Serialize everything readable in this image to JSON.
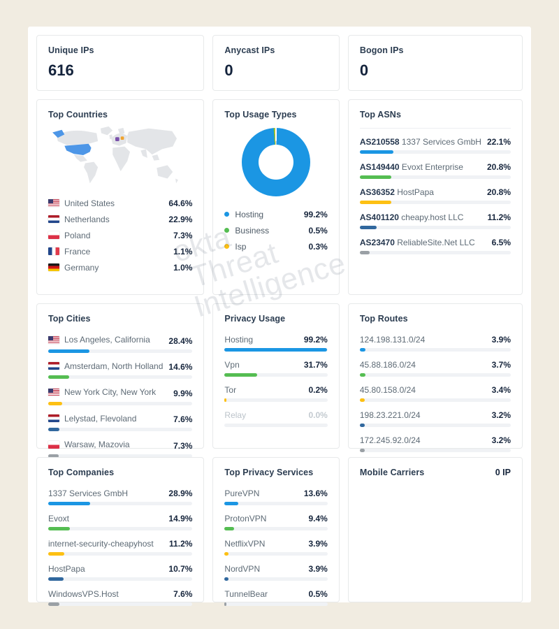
{
  "colors": {
    "blue": "#1b96e3",
    "green": "#55bd52",
    "yellow": "#fdc013",
    "navy": "#31689e",
    "gray": "#9aa0a5",
    "map_base": "#e3e5e8",
    "map_us": "#4d96e7",
    "map_marker_purple": "#7b52ab",
    "map_marker_orange": "#f0a32f",
    "track": "#f0f2f5"
  },
  "watermark": {
    "lines": [
      "okta",
      "Threat",
      "Intelligence"
    ]
  },
  "stats": [
    {
      "label": "Unique IPs",
      "value": "616"
    },
    {
      "label": "Anycast IPs",
      "value": "0"
    },
    {
      "label": "Bogon IPs",
      "value": "0"
    }
  ],
  "countries": {
    "title": "Top Countries",
    "rows": [
      {
        "flag": "us",
        "label": "United States",
        "pct": "64.6%"
      },
      {
        "flag": "nl",
        "label": "Netherlands",
        "pct": "22.9%"
      },
      {
        "flag": "pl",
        "label": "Poland",
        "pct": "7.3%"
      },
      {
        "flag": "fr",
        "label": "France",
        "pct": "1.1%"
      },
      {
        "flag": "de",
        "label": "Germany",
        "pct": "1.0%"
      }
    ]
  },
  "usage": {
    "title": "Top Usage Types",
    "type": "donut",
    "segments": [
      {
        "label": "Hosting",
        "value": 99.2,
        "pct": "99.2%",
        "color": "blue"
      },
      {
        "label": "Business",
        "value": 0.5,
        "pct": "0.5%",
        "color": "green"
      },
      {
        "label": "Isp",
        "value": 0.3,
        "pct": "0.3%",
        "color": "yellow"
      }
    ]
  },
  "asns": {
    "title": "Top ASNs",
    "rows": [
      {
        "asn": "AS210558",
        "name": "1337 Services GmbH",
        "pct": "22.1%",
        "value": 22.1,
        "color": "blue"
      },
      {
        "asn": "AS149440",
        "name": "Evoxt Enterprise",
        "pct": "20.8%",
        "value": 20.8,
        "color": "green"
      },
      {
        "asn": "AS36352",
        "name": "HostPapa",
        "pct": "20.8%",
        "value": 20.8,
        "color": "yellow"
      },
      {
        "asn": "AS401120",
        "name": "cheapy.host LLC",
        "pct": "11.2%",
        "value": 11.2,
        "color": "navy"
      },
      {
        "asn": "AS23470",
        "name": "ReliableSite.Net LLC",
        "pct": "6.5%",
        "value": 6.5,
        "color": "gray"
      }
    ]
  },
  "cities": {
    "title": "Top Cities",
    "rows": [
      {
        "flag": "us",
        "label": "Los Angeles, California",
        "pct": "28.4%",
        "value": 28.4,
        "color": "blue"
      },
      {
        "flag": "nl",
        "label": "Amsterdam, North Holland",
        "pct": "14.6%",
        "value": 14.6,
        "color": "green"
      },
      {
        "flag": "us",
        "label": "New York City, New York",
        "pct": "9.9%",
        "value": 9.9,
        "color": "yellow"
      },
      {
        "flag": "nl",
        "label": "Lelystad, Flevoland",
        "pct": "7.6%",
        "value": 7.6,
        "color": "navy"
      },
      {
        "flag": "pl",
        "label": "Warsaw, Mazovia",
        "pct": "7.3%",
        "value": 7.3,
        "color": "gray"
      }
    ]
  },
  "privacy": {
    "title": "Privacy Usage",
    "rows": [
      {
        "label": "Hosting",
        "pct": "99.2%",
        "value": 99.2,
        "color": "blue",
        "muted": false
      },
      {
        "label": "Vpn",
        "pct": "31.7%",
        "value": 31.7,
        "color": "green",
        "muted": false
      },
      {
        "label": "Tor",
        "pct": "0.2%",
        "value": 0.2,
        "color": "yellow",
        "muted": false
      },
      {
        "label": "Relay",
        "pct": "0.0%",
        "value": 0,
        "color": "gray",
        "muted": true
      }
    ]
  },
  "routes": {
    "title": "Top Routes",
    "rows": [
      {
        "label": "124.198.131.0/24",
        "pct": "3.9%",
        "value": 3.9,
        "color": "blue"
      },
      {
        "label": "45.88.186.0/24",
        "pct": "3.7%",
        "value": 3.7,
        "color": "green"
      },
      {
        "label": "45.80.158.0/24",
        "pct": "3.4%",
        "value": 3.4,
        "color": "yellow"
      },
      {
        "label": "198.23.221.0/24",
        "pct": "3.2%",
        "value": 3.2,
        "color": "navy"
      },
      {
        "label": "172.245.92.0/24",
        "pct": "3.2%",
        "value": 3.2,
        "color": "gray"
      }
    ]
  },
  "companies": {
    "title": "Top Companies",
    "rows": [
      {
        "label": "1337 Services GmbH",
        "pct": "28.9%",
        "value": 28.9,
        "color": "blue"
      },
      {
        "label": "Evoxt",
        "pct": "14.9%",
        "value": 14.9,
        "color": "green"
      },
      {
        "label": "internet-security-cheapyhost",
        "pct": "11.2%",
        "value": 11.2,
        "color": "yellow"
      },
      {
        "label": "HostPapa",
        "pct": "10.7%",
        "value": 10.7,
        "color": "navy"
      },
      {
        "label": "WindowsVPS.Host",
        "pct": "7.6%",
        "value": 7.6,
        "color": "gray"
      }
    ]
  },
  "services": {
    "title": "Top Privacy Services",
    "rows": [
      {
        "label": "PureVPN",
        "pct": "13.6%",
        "value": 13.6,
        "color": "blue"
      },
      {
        "label": "ProtonVPN",
        "pct": "9.4%",
        "value": 9.4,
        "color": "green"
      },
      {
        "label": "NetflixVPN",
        "pct": "3.9%",
        "value": 3.9,
        "color": "yellow"
      },
      {
        "label": "NordVPN",
        "pct": "3.9%",
        "value": 3.9,
        "color": "navy"
      },
      {
        "label": "TunnelBear",
        "pct": "0.5%",
        "value": 0.5,
        "color": "gray"
      }
    ]
  },
  "carriers": {
    "title": "Mobile Carriers",
    "value": "0 IP"
  }
}
